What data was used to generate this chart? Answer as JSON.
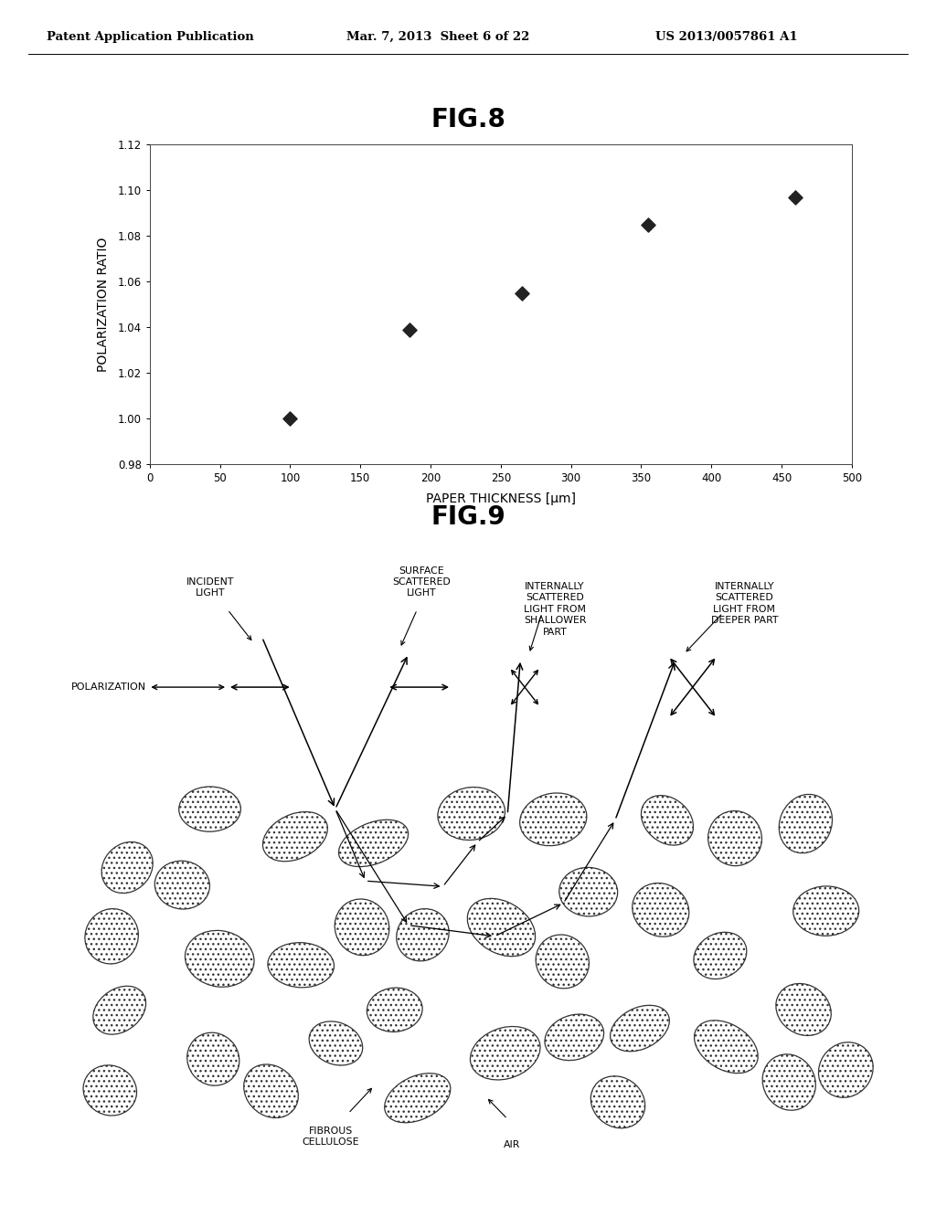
{
  "header_left": "Patent Application Publication",
  "header_mid": "Mar. 7, 2013  Sheet 6 of 22",
  "header_right": "US 2013/0057861 A1",
  "fig8_title": "FIG.8",
  "fig9_title": "FIG.9",
  "scatter_x": [
    100,
    185,
    265,
    355,
    460
  ],
  "scatter_y": [
    1.0,
    1.039,
    1.055,
    1.085,
    1.097
  ],
  "xlabel": "PAPER THICKNESS [μm]",
  "ylabel": "POLARIZATION RATIO",
  "xlim": [
    0,
    500
  ],
  "ylim": [
    0.98,
    1.12
  ],
  "xticks": [
    0,
    50,
    100,
    150,
    200,
    250,
    300,
    350,
    400,
    450,
    500
  ],
  "yticks": [
    0.98,
    1.0,
    1.02,
    1.04,
    1.06,
    1.08,
    1.1,
    1.12
  ],
  "marker_color": "#222222",
  "marker_size": 60,
  "bg_color": "#ffffff",
  "text_color": "#000000",
  "label_incident_light": "INCIDENT\nLIGHT",
  "label_polarization": "POLARIZATION",
  "label_surface_scattered": "SURFACE\nSCATTERED\nLIGHT",
  "label_internally_shallow": "INTERNALLY\nSCATTERED\nLIGHT FROM\nSHALLOWER\nPART",
  "label_internally_deeper": "INTERNALLY\nSCATTERED\nLIGHT FROM\nDEEPER PART",
  "label_fibrous": "FIBROUS\nCELLULOSE",
  "label_air": "AIR"
}
